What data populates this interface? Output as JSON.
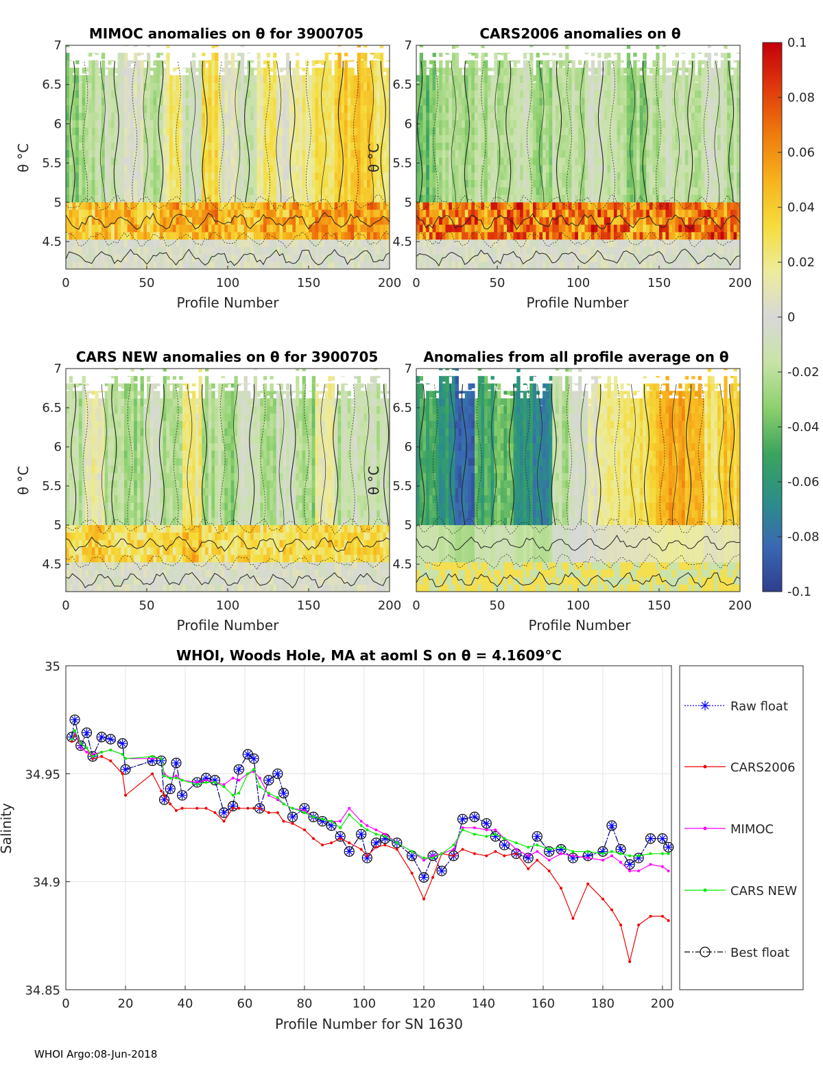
{
  "footer": "WHOI Argo:08-Jun-2018",
  "colorbar": {
    "min": -0.1,
    "max": 0.1,
    "tick_values": [
      0.1,
      0.08,
      0.06,
      0.04,
      0.02,
      0,
      -0.02,
      -0.04,
      -0.06,
      -0.08,
      -0.1
    ],
    "tick_labels": [
      "0.1",
      "0.08",
      "0.06",
      "0.04",
      "0.02",
      "0",
      "-0.02",
      "-0.04",
      "-0.06",
      "-0.08",
      "-0.1"
    ],
    "colors": [
      "#2f3e8e",
      "#3a68b4",
      "#2b8f86",
      "#3aa35f",
      "#8ccf6c",
      "#c8e3a6",
      "#d8d8d8",
      "#ecec9c",
      "#f5dc3c",
      "#f7b21c",
      "#ef7a0d",
      "#e03a0c",
      "#c4000b"
    ]
  },
  "chart_data": [
    {
      "type": "heatmap",
      "id": "mimoc",
      "title": "MIMOC anomalies on θ  for 3900705",
      "xlabel": "Profile Number",
      "ylabel": "θ °C",
      "xlim": [
        0,
        200
      ],
      "ylim": [
        4.15,
        7
      ],
      "xticks": [
        0,
        50,
        100,
        150,
        200
      ],
      "xtick_labels": [
        "0",
        "50",
        "100",
        "150",
        "200"
      ],
      "yticks": [
        4.5,
        5,
        5.5,
        6,
        6.5,
        7
      ],
      "ytick_labels": [
        "4.5",
        "5",
        "5.5",
        "6",
        "6.5",
        "7"
      ],
      "profile_band_anomalies": [
        -0.03,
        -0.02,
        -0.01,
        0.0,
        -0.02,
        0.02,
        -0.01,
        0.03,
        0.0,
        -0.01,
        0.02,
        0.01,
        0.02,
        0.03,
        0.04,
        0.04,
        0.03
      ],
      "layer_4p5_to_5_anomaly": 0.05
    },
    {
      "type": "heatmap",
      "id": "cars2006",
      "title": "CARS2006 anomalies on θ",
      "xlabel": "Profile Number",
      "ylabel": "θ °C",
      "xlim": [
        0,
        200
      ],
      "ylim": [
        4.15,
        7
      ],
      "xticks": [
        0,
        50,
        100,
        150,
        200
      ],
      "xtick_labels": [
        "0",
        "50",
        "100",
        "150",
        "200"
      ],
      "yticks": [
        4.5,
        5,
        5.5,
        6,
        6.5,
        7
      ],
      "ytick_labels": [
        "4.5",
        "5",
        "5.5",
        "6",
        "6.5",
        "7"
      ],
      "profile_band_anomalies": [
        -0.04,
        -0.02,
        -0.03,
        -0.02,
        -0.02,
        -0.01,
        -0.03,
        -0.02,
        -0.02,
        -0.01,
        -0.02,
        -0.03,
        -0.02,
        -0.01,
        -0.02,
        -0.01,
        -0.02
      ],
      "layer_4p5_to_5_anomaly": 0.08
    },
    {
      "type": "heatmap",
      "id": "cars_new",
      "title": "CARS NEW anomalies on θ for 3900705",
      "xlabel": "Profile Number",
      "ylabel": "θ °C",
      "xlim": [
        0,
        200
      ],
      "ylim": [
        4.15,
        7
      ],
      "xticks": [
        0,
        50,
        100,
        150,
        200
      ],
      "xtick_labels": [
        "0",
        "50",
        "100",
        "150",
        "200"
      ],
      "yticks": [
        4.5,
        5,
        5.5,
        6,
        6.5,
        7
      ],
      "ytick_labels": [
        "4.5",
        "5",
        "5.5",
        "6",
        "6.5",
        "7"
      ],
      "profile_band_anomalies": [
        -0.02,
        0.01,
        -0.02,
        -0.03,
        -0.01,
        -0.02,
        0.02,
        -0.02,
        -0.03,
        -0.01,
        -0.02,
        -0.01,
        -0.03,
        0.01,
        -0.02,
        -0.01,
        -0.02
      ],
      "layer_4p5_to_5_anomaly": 0.04
    },
    {
      "type": "heatmap",
      "id": "all_avg",
      "title": "Anomalies from all profile average on θ",
      "xlabel": "Profile Number",
      "ylabel": "θ °C",
      "xlim": [
        0,
        200
      ],
      "ylim": [
        4.15,
        7
      ],
      "xticks": [
        0,
        50,
        100,
        150,
        200
      ],
      "xtick_labels": [
        "0",
        "50",
        "100",
        "150",
        "200"
      ],
      "yticks": [
        4.5,
        5,
        5.5,
        6,
        6.5,
        7
      ],
      "ytick_labels": [
        "4.5",
        "5",
        "5.5",
        "6",
        "6.5",
        "7"
      ],
      "profile_band_anomalies": [
        -0.05,
        -0.06,
        -0.08,
        -0.05,
        -0.04,
        -0.06,
        -0.07,
        -0.02,
        -0.01,
        0.01,
        0.02,
        0.03,
        0.04,
        0.05,
        0.04,
        0.03,
        0.04
      ],
      "layer_4p5_to_5_anomaly": 0.0
    },
    {
      "type": "line",
      "id": "salinity",
      "title": "WHOI, Woods Hole, MA at aoml S on θ = 4.1609°C",
      "xlabel": "Profile Number for SN 1630",
      "ylabel": "Salinity",
      "xlim": [
        0,
        203
      ],
      "ylim": [
        34.85,
        35
      ],
      "xticks": [
        0,
        20,
        40,
        60,
        80,
        100,
        120,
        140,
        160,
        180,
        200
      ],
      "xtick_labels": [
        "0",
        "20",
        "40",
        "60",
        "80",
        "100",
        "120",
        "140",
        "160",
        "180",
        "200"
      ],
      "yticks": [
        34.85,
        34.9,
        34.95,
        35
      ],
      "ytick_labels": [
        "34.85",
        "34.9",
        "34.95",
        "35"
      ],
      "grid": true,
      "legend_position": "right",
      "x": [
        2,
        3,
        5,
        7,
        9,
        12,
        15,
        19,
        20,
        29,
        32,
        33,
        35,
        37,
        39,
        44,
        47,
        50,
        53,
        56,
        58,
        61,
        63,
        65,
        68,
        71,
        73,
        76,
        80,
        83,
        86,
        89,
        92,
        95,
        99,
        101,
        104,
        107,
        111,
        116,
        120,
        123,
        126,
        130,
        133,
        137,
        141,
        144,
        147,
        151,
        155,
        158,
        162,
        166,
        170,
        175,
        180,
        183,
        186,
        189,
        192,
        196,
        200,
        202
      ],
      "series": [
        {
          "name": "Raw float",
          "color": "#0000ff",
          "values": [
            34.967,
            34.975,
            34.963,
            34.969,
            34.958,
            34.967,
            34.966,
            34.964,
            34.952,
            34.956,
            34.956,
            34.938,
            34.943,
            34.955,
            34.94,
            34.946,
            34.948,
            34.947,
            34.932,
            34.935,
            34.952,
            34.959,
            34.957,
            34.934,
            34.947,
            34.95,
            34.941,
            34.93,
            34.934,
            34.93,
            34.928,
            34.926,
            34.921,
            34.914,
            34.922,
            34.911,
            34.918,
            34.92,
            34.918,
            34.912,
            34.902,
            34.912,
            34.905,
            34.912,
            34.929,
            34.93,
            34.927,
            34.921,
            34.917,
            34.913,
            34.911,
            34.921,
            34.914,
            34.915,
            34.911,
            34.912,
            34.914,
            34.926,
            34.915,
            34.908,
            34.911,
            34.92,
            34.92,
            34.916
          ]
        },
        {
          "name": "CARS2006",
          "color": "#ee0000",
          "values": [
            34.965,
            34.968,
            34.964,
            34.962,
            34.957,
            34.958,
            34.956,
            34.95,
            34.94,
            34.95,
            34.942,
            34.94,
            34.936,
            34.933,
            34.934,
            34.934,
            34.934,
            34.932,
            34.928,
            34.934,
            34.934,
            34.934,
            34.934,
            34.934,
            34.932,
            34.932,
            34.928,
            34.927,
            34.924,
            34.92,
            34.917,
            34.918,
            34.92,
            34.918,
            34.915,
            34.912,
            34.916,
            34.917,
            34.915,
            34.904,
            34.892,
            34.902,
            34.913,
            34.912,
            34.915,
            34.913,
            34.912,
            34.914,
            34.912,
            34.913,
            34.906,
            34.91,
            34.905,
            34.897,
            34.883,
            34.899,
            34.892,
            34.887,
            34.88,
            34.863,
            34.88,
            34.884,
            34.884,
            34.882
          ]
        },
        {
          "name": "MIMOC",
          "color": "#ff00ff",
          "values": [
            34.966,
            34.969,
            34.962,
            34.96,
            34.959,
            34.96,
            34.961,
            34.959,
            34.957,
            34.957,
            34.957,
            34.95,
            34.948,
            34.949,
            34.947,
            34.946,
            34.947,
            34.946,
            34.945,
            34.948,
            34.947,
            34.95,
            34.951,
            34.948,
            34.94,
            34.938,
            34.936,
            34.934,
            34.933,
            34.93,
            34.929,
            34.928,
            34.928,
            34.934,
            34.928,
            34.926,
            34.924,
            34.922,
            34.918,
            34.914,
            34.91,
            34.912,
            34.913,
            34.915,
            34.925,
            34.925,
            34.924,
            34.924,
            34.92,
            34.915,
            34.912,
            34.914,
            34.91,
            34.913,
            34.912,
            34.911,
            34.91,
            34.912,
            34.909,
            34.905,
            34.905,
            34.908,
            34.907,
            34.905
          ]
        },
        {
          "name": "CARS NEW",
          "color": "#00ee00",
          "values": [
            34.966,
            34.97,
            34.964,
            34.962,
            34.958,
            34.96,
            34.961,
            34.959,
            34.957,
            34.958,
            34.957,
            34.949,
            34.948,
            34.948,
            34.947,
            34.945,
            34.946,
            34.946,
            34.944,
            34.94,
            34.941,
            34.95,
            34.952,
            34.944,
            34.941,
            34.939,
            34.936,
            34.934,
            34.932,
            34.93,
            34.929,
            34.928,
            34.925,
            34.931,
            34.926,
            34.924,
            34.922,
            34.921,
            34.918,
            34.914,
            34.911,
            34.911,
            34.913,
            34.917,
            34.924,
            34.922,
            34.921,
            34.922,
            34.92,
            34.918,
            34.916,
            34.917,
            34.915,
            34.916,
            34.914,
            34.914,
            34.913,
            34.914,
            34.913,
            34.912,
            34.912,
            34.913,
            34.913,
            34.913
          ]
        },
        {
          "name": "Best float",
          "color": "#000000",
          "values": [
            34.967,
            34.975,
            34.963,
            34.969,
            34.958,
            34.967,
            34.966,
            34.964,
            34.952,
            34.956,
            34.956,
            34.938,
            34.943,
            34.955,
            34.94,
            34.946,
            34.948,
            34.947,
            34.932,
            34.935,
            34.952,
            34.959,
            34.957,
            34.934,
            34.947,
            34.95,
            34.941,
            34.93,
            34.934,
            34.93,
            34.928,
            34.926,
            34.921,
            34.914,
            34.922,
            34.911,
            34.918,
            34.92,
            34.918,
            34.912,
            34.902,
            34.912,
            34.905,
            34.912,
            34.929,
            34.93,
            34.927,
            34.921,
            34.917,
            34.913,
            34.911,
            34.921,
            34.914,
            34.915,
            34.911,
            34.912,
            34.914,
            34.926,
            34.915,
            34.908,
            34.911,
            34.92,
            34.92,
            34.916
          ]
        }
      ]
    }
  ]
}
